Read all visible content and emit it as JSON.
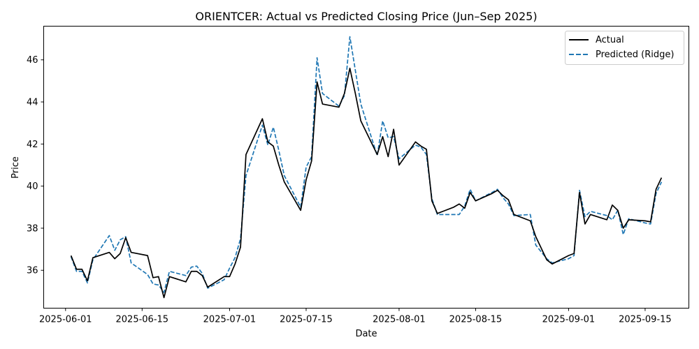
{
  "chart_data": {
    "type": "line",
    "title": "ORIENTCER: Actual vs Predicted Closing Price (Jun–Sep 2025)",
    "xlabel": "Date",
    "ylabel": "Price",
    "xlim": [
      "2025-05-28",
      "2025-09-23"
    ],
    "ylim": [
      34.2,
      47.6
    ],
    "yticks": [
      36,
      38,
      40,
      42,
      44,
      46
    ],
    "xticks": [
      "2025-06-01",
      "2025-06-15",
      "2025-07-01",
      "2025-07-15",
      "2025-08-01",
      "2025-08-15",
      "2025-09-01",
      "2025-09-15"
    ],
    "grid": false,
    "legend_position": "upper right",
    "series": [
      {
        "name": "Actual",
        "color": "#000000",
        "style": "solid",
        "points": [
          [
            "2025-06-02",
            36.7
          ],
          [
            "2025-06-03",
            36.05
          ],
          [
            "2025-06-04",
            36.05
          ],
          [
            "2025-06-05",
            35.5
          ],
          [
            "2025-06-06",
            36.6
          ],
          [
            "2025-06-09",
            36.85
          ],
          [
            "2025-06-10",
            36.55
          ],
          [
            "2025-06-11",
            36.8
          ],
          [
            "2025-06-12",
            37.55
          ],
          [
            "2025-06-13",
            36.85
          ],
          [
            "2025-06-16",
            36.7
          ],
          [
            "2025-06-17",
            35.65
          ],
          [
            "2025-06-18",
            35.7
          ],
          [
            "2025-06-19",
            34.7
          ],
          [
            "2025-06-20",
            35.7
          ],
          [
            "2025-06-23",
            35.45
          ],
          [
            "2025-06-24",
            35.95
          ],
          [
            "2025-06-25",
            35.95
          ],
          [
            "2025-06-26",
            35.75
          ],
          [
            "2025-06-27",
            35.2
          ],
          [
            "2025-06-30",
            35.7
          ],
          [
            "2025-07-01",
            35.7
          ],
          [
            "2025-07-02",
            36.3
          ],
          [
            "2025-07-03",
            37.1
          ],
          [
            "2025-07-04",
            41.5
          ],
          [
            "2025-07-07",
            43.2
          ],
          [
            "2025-07-08",
            42.1
          ],
          [
            "2025-07-09",
            41.9
          ],
          [
            "2025-07-10",
            41.0
          ],
          [
            "2025-07-11",
            40.2
          ],
          [
            "2025-07-14",
            38.85
          ],
          [
            "2025-07-15",
            40.3
          ],
          [
            "2025-07-16",
            41.2
          ],
          [
            "2025-07-17",
            44.95
          ],
          [
            "2025-07-18",
            43.9
          ],
          [
            "2025-07-21",
            43.75
          ],
          [
            "2025-07-22",
            44.4
          ],
          [
            "2025-07-23",
            45.6
          ],
          [
            "2025-07-24",
            44.4
          ],
          [
            "2025-07-25",
            43.1
          ],
          [
            "2025-07-28",
            41.5
          ],
          [
            "2025-07-29",
            42.35
          ],
          [
            "2025-07-30",
            41.4
          ],
          [
            "2025-07-31",
            42.7
          ],
          [
            "2025-08-01",
            41.0
          ],
          [
            "2025-08-04",
            42.1
          ],
          [
            "2025-08-05",
            41.9
          ],
          [
            "2025-08-06",
            41.75
          ],
          [
            "2025-08-07",
            39.3
          ],
          [
            "2025-08-08",
            38.7
          ],
          [
            "2025-08-11",
            39.0
          ],
          [
            "2025-08-12",
            39.15
          ],
          [
            "2025-08-13",
            38.95
          ],
          [
            "2025-08-14",
            39.7
          ],
          [
            "2025-08-15",
            39.3
          ],
          [
            "2025-08-18",
            39.65
          ],
          [
            "2025-08-19",
            39.8
          ],
          [
            "2025-08-20",
            39.55
          ],
          [
            "2025-08-21",
            39.35
          ],
          [
            "2025-08-22",
            38.65
          ],
          [
            "2025-08-25",
            38.35
          ],
          [
            "2025-08-26",
            37.6
          ],
          [
            "2025-08-28",
            36.5
          ],
          [
            "2025-08-29",
            36.3
          ],
          [
            "2025-09-01",
            36.7
          ],
          [
            "2025-09-02",
            36.8
          ],
          [
            "2025-09-03",
            39.7
          ],
          [
            "2025-09-04",
            38.2
          ],
          [
            "2025-09-05",
            38.65
          ],
          [
            "2025-09-08",
            38.4
          ],
          [
            "2025-09-09",
            39.1
          ],
          [
            "2025-09-10",
            38.85
          ],
          [
            "2025-09-11",
            38.0
          ],
          [
            "2025-09-12",
            38.4
          ],
          [
            "2025-09-15",
            38.35
          ],
          [
            "2025-09-16",
            38.3
          ],
          [
            "2025-09-17",
            39.85
          ],
          [
            "2025-09-18",
            40.4
          ]
        ]
      },
      {
        "name": "Predicted (Ridge)",
        "color": "#1f77b4",
        "style": "dashed",
        "points": [
          [
            "2025-06-02",
            36.65
          ],
          [
            "2025-06-03",
            35.95
          ],
          [
            "2025-06-04",
            35.95
          ],
          [
            "2025-06-05",
            35.4
          ],
          [
            "2025-06-06",
            36.5
          ],
          [
            "2025-06-09",
            37.65
          ],
          [
            "2025-06-10",
            36.95
          ],
          [
            "2025-06-11",
            37.45
          ],
          [
            "2025-06-12",
            37.6
          ],
          [
            "2025-06-13",
            36.35
          ],
          [
            "2025-06-16",
            35.8
          ],
          [
            "2025-06-17",
            35.35
          ],
          [
            "2025-06-18",
            35.3
          ],
          [
            "2025-06-19",
            34.95
          ],
          [
            "2025-06-20",
            35.95
          ],
          [
            "2025-06-23",
            35.75
          ],
          [
            "2025-06-24",
            36.15
          ],
          [
            "2025-06-25",
            36.2
          ],
          [
            "2025-06-26",
            35.85
          ],
          [
            "2025-06-27",
            35.15
          ],
          [
            "2025-06-30",
            35.55
          ],
          [
            "2025-07-01",
            36.1
          ],
          [
            "2025-07-02",
            36.6
          ],
          [
            "2025-07-03",
            37.5
          ],
          [
            "2025-07-04",
            40.5
          ],
          [
            "2025-07-07",
            42.9
          ],
          [
            "2025-07-08",
            41.95
          ],
          [
            "2025-07-09",
            42.8
          ],
          [
            "2025-07-10",
            41.7
          ],
          [
            "2025-07-11",
            40.5
          ],
          [
            "2025-07-14",
            39.0
          ],
          [
            "2025-07-15",
            40.9
          ],
          [
            "2025-07-16",
            41.4
          ],
          [
            "2025-07-17",
            46.1
          ],
          [
            "2025-07-18",
            44.4
          ],
          [
            "2025-07-21",
            43.8
          ],
          [
            "2025-07-22",
            44.3
          ],
          [
            "2025-07-23",
            47.1
          ],
          [
            "2025-07-24",
            45.5
          ],
          [
            "2025-07-25",
            43.9
          ],
          [
            "2025-07-28",
            41.45
          ],
          [
            "2025-07-29",
            43.1
          ],
          [
            "2025-07-30",
            42.3
          ],
          [
            "2025-07-31",
            42.35
          ],
          [
            "2025-08-01",
            41.3
          ],
          [
            "2025-08-04",
            41.95
          ],
          [
            "2025-08-05",
            41.85
          ],
          [
            "2025-08-06",
            41.5
          ],
          [
            "2025-08-07",
            39.4
          ],
          [
            "2025-08-08",
            38.65
          ],
          [
            "2025-08-11",
            38.65
          ],
          [
            "2025-08-12",
            38.65
          ],
          [
            "2025-08-13",
            39.05
          ],
          [
            "2025-08-14",
            39.85
          ],
          [
            "2025-08-15",
            39.3
          ],
          [
            "2025-08-18",
            39.7
          ],
          [
            "2025-08-19",
            39.85
          ],
          [
            "2025-08-20",
            39.45
          ],
          [
            "2025-08-21",
            39.15
          ],
          [
            "2025-08-22",
            38.6
          ],
          [
            "2025-08-25",
            38.65
          ],
          [
            "2025-08-26",
            37.2
          ],
          [
            "2025-08-28",
            36.55
          ],
          [
            "2025-08-29",
            36.35
          ],
          [
            "2025-09-01",
            36.55
          ],
          [
            "2025-09-02",
            36.7
          ],
          [
            "2025-09-03",
            39.8
          ],
          [
            "2025-09-04",
            38.55
          ],
          [
            "2025-09-05",
            38.8
          ],
          [
            "2025-09-08",
            38.6
          ],
          [
            "2025-09-09",
            38.4
          ],
          [
            "2025-09-10",
            38.85
          ],
          [
            "2025-09-11",
            37.7
          ],
          [
            "2025-09-12",
            38.45
          ],
          [
            "2025-09-15",
            38.25
          ],
          [
            "2025-09-16",
            38.2
          ],
          [
            "2025-09-17",
            39.65
          ],
          [
            "2025-09-18",
            40.2
          ]
        ]
      }
    ]
  }
}
